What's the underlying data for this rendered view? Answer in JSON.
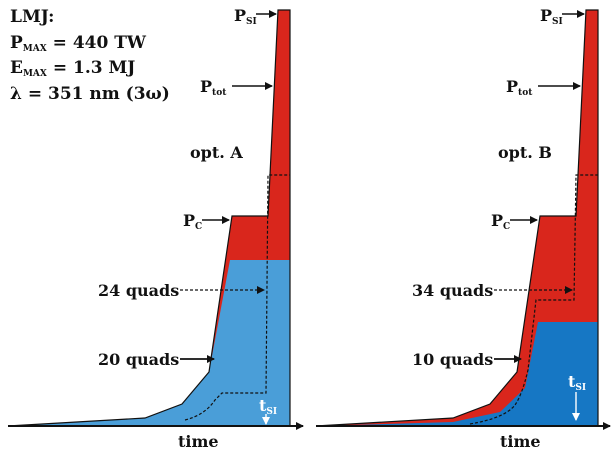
{
  "specs": {
    "title": "LMJ:",
    "pmax": {
      "symbol": "P",
      "sub": "MAX",
      "rest": " = 440 TW"
    },
    "emax": {
      "symbol": "E",
      "sub": "MAX",
      "rest": " = 1.3 MJ"
    },
    "lambda": "λ = 351 nm (3ω)"
  },
  "panels": [
    {
      "option": "opt. A",
      "upper_quads": "24 quads",
      "lower_quads": "20 quads",
      "psi": {
        "symbol": "P",
        "sub": "SI"
      },
      "ptot": {
        "symbol": "P",
        "sub": "tot"
      },
      "pc": {
        "symbol": "P",
        "sub": "C"
      },
      "tsi": {
        "symbol": "t",
        "sub": "SI"
      },
      "time_label": "time"
    },
    {
      "option": "opt. B",
      "upper_quads": "34 quads",
      "lower_quads": "10 quads",
      "psi": {
        "symbol": "P",
        "sub": "SI"
      },
      "ptot": {
        "symbol": "P",
        "sub": "tot"
      },
      "pc": {
        "symbol": "P",
        "sub": "C"
      },
      "tsi": {
        "symbol": "t",
        "sub": "SI"
      },
      "time_label": "time"
    }
  ],
  "colors": {
    "total_fill": "#d9261c",
    "panel_a_blue": "#4a9ed8",
    "panel_b_blue": "#1677c4",
    "outline": "#111111"
  }
}
